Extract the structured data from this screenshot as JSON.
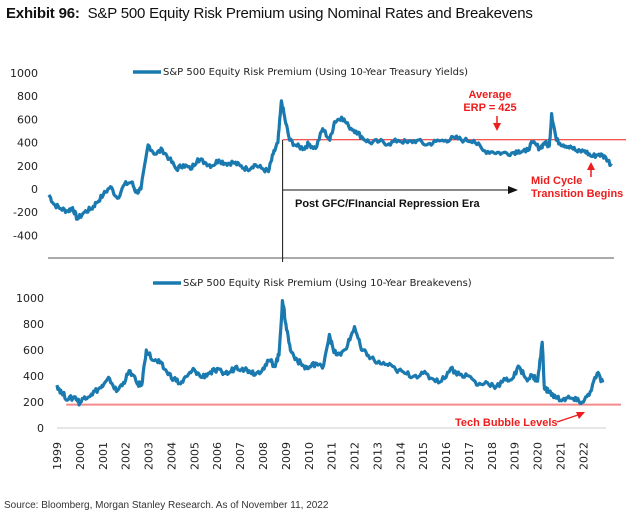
{
  "title": {
    "prefix": "Exhibit 96:",
    "text": "S&P 500 Equity Risk Premium using Nominal Rates and Breakevens"
  },
  "source": "Source: Bloomberg, Morgan Stanley Research. As of November 11, 2022",
  "colors": {
    "series": "#1a7ab0",
    "reference": "#ee1c1c",
    "reference_light": "#f28b8b",
    "axis": "#888888"
  },
  "chart_data": [
    {
      "type": "line",
      "legend": "S&P 500 Equity Risk Premium (Using 10-Year Treasury Yields)",
      "legend_position": "top-center",
      "yticks": [
        "1000",
        "800",
        "600",
        "400",
        "200",
        "0",
        "-200",
        "-400"
      ],
      "ylim": [
        -400,
        1000
      ],
      "xlim": [
        1999,
        2022.9
      ],
      "reference_line": {
        "value": 425,
        "from": 2008.9,
        "label": [
          "Average",
          "ERP = 425"
        ]
      },
      "annotations": {
        "era_label": "Post GFC/FInancial Repression Era",
        "era_start": 2008.9,
        "era_end": 2019.4,
        "mid_cycle": [
          "Mid Cycle",
          "Transition Begins"
        ]
      },
      "series": [
        {
          "name": "S&P 500 Equity Risk Premium (Using 10-Year Treasury Yields)",
          "x": [
            1999.0,
            1999.2,
            1999.5,
            1999.8,
            2000.0,
            2000.2,
            2000.5,
            2000.8,
            2001.0,
            2001.3,
            2001.6,
            2001.9,
            2002.2,
            2002.5,
            2002.7,
            2002.9,
            2003.2,
            2003.5,
            2003.8,
            2004.1,
            2004.4,
            2004.7,
            2005.0,
            2005.3,
            2005.6,
            2005.9,
            2006.2,
            2006.5,
            2006.8,
            2007.1,
            2007.4,
            2007.7,
            2008.0,
            2008.3,
            2008.5,
            2008.7,
            2008.85,
            2009.0,
            2009.2,
            2009.5,
            2009.8,
            2010.0,
            2010.3,
            2010.6,
            2010.9,
            2011.1,
            2011.4,
            2011.7,
            2012.0,
            2012.3,
            2012.6,
            2013.0,
            2013.4,
            2013.8,
            2014.2,
            2014.6,
            2015.0,
            2015.4,
            2015.8,
            2016.2,
            2016.6,
            2017.0,
            2017.4,
            2017.8,
            2018.2,
            2018.6,
            2018.9,
            2019.2,
            2019.5,
            2019.8,
            2020.0,
            2020.2,
            2020.3,
            2020.5,
            2020.8,
            2021.1,
            2021.4,
            2021.7,
            2022.0,
            2022.3,
            2022.6,
            2022.85
          ],
          "values": [
            -50,
            -130,
            -170,
            -190,
            -160,
            -260,
            -200,
            -170,
            -120,
            -50,
            20,
            -80,
            40,
            60,
            -30,
            0,
            380,
            300,
            340,
            260,
            170,
            210,
            170,
            260,
            230,
            200,
            250,
            220,
            230,
            200,
            170,
            210,
            180,
            150,
            300,
            400,
            760,
            600,
            420,
            370,
            350,
            390,
            350,
            520,
            420,
            580,
            620,
            540,
            500,
            440,
            400,
            410,
            390,
            420,
            400,
            420,
            380,
            410,
            420,
            440,
            420,
            420,
            330,
            320,
            310,
            310,
            330,
            320,
            400,
            350,
            400,
            370,
            650,
            420,
            380,
            370,
            320,
            330,
            280,
            300,
            270,
            200
          ]
        }
      ]
    },
    {
      "type": "line",
      "legend": "S&P 500 Equity Risk Premium (Using 10-Year Breakevens)",
      "legend_position": "top-center",
      "yticks": [
        "1000",
        "800",
        "600",
        "400",
        "200",
        "0"
      ],
      "ylim": [
        0,
        1000
      ],
      "xlim": [
        1999,
        2022.9
      ],
      "xticks": [
        "1999",
        "2000",
        "2001",
        "2002",
        "2003",
        "2004",
        "2005",
        "2006",
        "2007",
        "2008",
        "2009",
        "2010",
        "2011",
        "2012",
        "2013",
        "2014",
        "2015",
        "2016",
        "2017",
        "2018",
        "2019",
        "2020",
        "2021",
        "2022"
      ],
      "reference_line": {
        "value": 180,
        "from": 1999.4,
        "label": "Tech Bubble Levels"
      },
      "series": [
        {
          "name": "S&P 500 Equity Risk Premium (Using 10-Year Breakevens)",
          "x": [
            1999.0,
            1999.2,
            1999.5,
            1999.8,
            2000.0,
            2000.2,
            2000.5,
            2000.8,
            2001.0,
            2001.3,
            2001.6,
            2001.9,
            2002.2,
            2002.5,
            2002.7,
            2002.9,
            2003.2,
            2003.5,
            2003.8,
            2004.1,
            2004.4,
            2004.7,
            2005.0,
            2005.3,
            2005.6,
            2005.9,
            2006.2,
            2006.5,
            2006.8,
            2007.1,
            2007.4,
            2007.7,
            2008.0,
            2008.3,
            2008.5,
            2008.7,
            2008.85,
            2009.0,
            2009.2,
            2009.5,
            2009.8,
            2010.0,
            2010.3,
            2010.6,
            2010.9,
            2011.1,
            2011.4,
            2011.7,
            2012.0,
            2012.3,
            2012.6,
            2013.0,
            2013.4,
            2013.8,
            2014.2,
            2014.6,
            2015.0,
            2015.4,
            2015.8,
            2016.2,
            2016.6,
            2017.0,
            2017.4,
            2017.8,
            2018.2,
            2018.6,
            2018.9,
            2019.2,
            2019.5,
            2019.8,
            2020.0,
            2020.2,
            2020.3,
            2020.5,
            2020.8,
            2021.1,
            2021.4,
            2021.7,
            2022.0,
            2022.3,
            2022.6,
            2022.85
          ],
          "values": [
            330,
            270,
            220,
            240,
            190,
            240,
            260,
            300,
            320,
            380,
            280,
            350,
            440,
            340,
            330,
            600,
            520,
            500,
            430,
            380,
            340,
            400,
            450,
            390,
            420,
            440,
            430,
            420,
            470,
            460,
            440,
            420,
            460,
            520,
            480,
            560,
            980,
            800,
            600,
            520,
            470,
            460,
            500,
            460,
            720,
            580,
            560,
            640,
            780,
            600,
            560,
            500,
            490,
            450,
            420,
            400,
            420,
            380,
            360,
            460,
            410,
            400,
            330,
            350,
            320,
            370,
            380,
            470,
            380,
            400,
            360,
            660,
            300,
            280,
            230,
            220,
            230,
            210,
            200,
            280,
            420,
            350
          ]
        }
      ]
    }
  ]
}
